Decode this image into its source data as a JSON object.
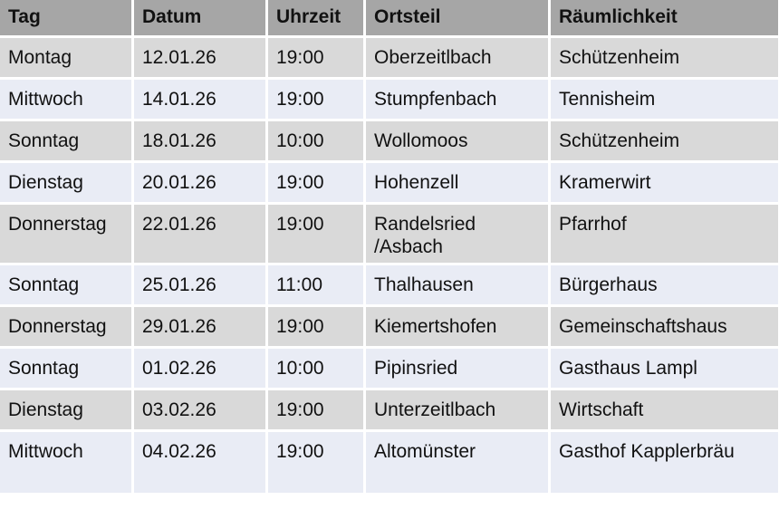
{
  "table": {
    "headers": [
      "Tag",
      "Datum",
      "Uhrzeit",
      "Ortsteil",
      "Räumlichkeit"
    ],
    "rows": [
      [
        "Montag",
        "12.01.26",
        "19:00",
        "Oberzeitlbach",
        "Schützenheim"
      ],
      [
        "Mittwoch",
        "14.01.26",
        "19:00",
        "Stumpfenbach",
        "Tennisheim"
      ],
      [
        "Sonntag",
        "18.01.26",
        "10:00",
        "Wollomoos",
        "Schützenheim"
      ],
      [
        "Dienstag",
        "20.01.26",
        "19:00",
        "Hohenzell",
        "Kramerwirt"
      ],
      [
        "Donnerstag",
        "22.01.26",
        "19:00",
        "Randelsried /Asbach",
        "Pfarrhof"
      ],
      [
        "Sonntag",
        "25.01.26",
        "11:00",
        "Thalhausen",
        "Bürgerhaus"
      ],
      [
        "Donnerstag",
        "29.01.26",
        "19:00",
        "Kiemertshofen",
        "Gemeinschaftshaus"
      ],
      [
        "Sonntag",
        "01.02.26",
        "10:00",
        "Pipinsried",
        "Gasthaus Lampl"
      ],
      [
        "Dienstag",
        "03.02.26",
        "19:00",
        "Unterzeitlbach",
        "Wirtschaft"
      ],
      [
        "Mittwoch",
        "04.02.26",
        "19:00",
        "Altomünster",
        "Gasthof Kapplerbräu"
      ]
    ]
  },
  "colors": {
    "header": "#a6a6a6",
    "row_odd": "#d9d9d9",
    "row_even": "#e9ecf5"
  }
}
